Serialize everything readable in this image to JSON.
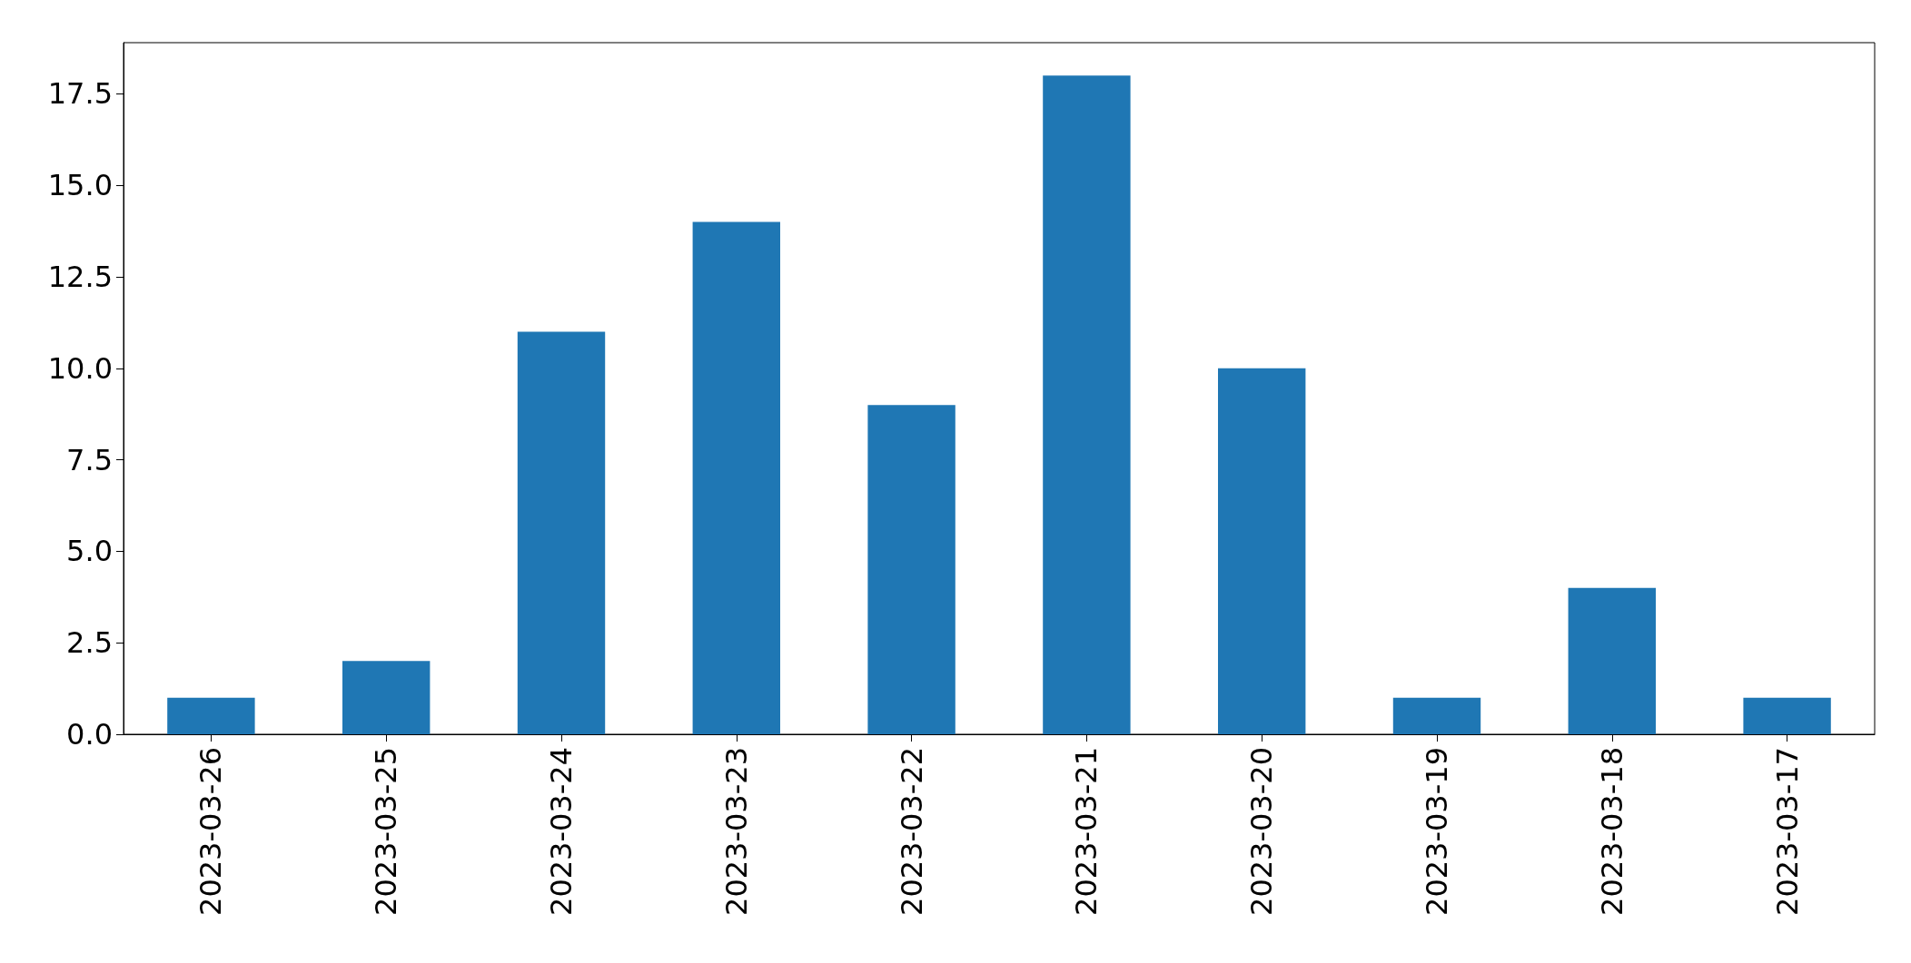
{
  "chart_data": {
    "type": "bar",
    "categories": [
      "2023-03-26",
      "2023-03-25",
      "2023-03-24",
      "2023-03-23",
      "2023-03-22",
      "2023-03-21",
      "2023-03-20",
      "2023-03-19",
      "2023-03-18",
      "2023-03-17"
    ],
    "values": [
      1,
      2,
      11,
      14,
      9,
      18,
      10,
      1,
      4,
      1
    ],
    "color": "#1f77b4",
    "ylim": [
      0,
      18.9
    ],
    "yticks": [
      {
        "value": 0,
        "label": "0.0"
      },
      {
        "value": 2.5,
        "label": "2.5"
      },
      {
        "value": 5,
        "label": "5.0"
      },
      {
        "value": 7.5,
        "label": "7.5"
      },
      {
        "value": 10,
        "label": "10.0"
      },
      {
        "value": 12.5,
        "label": "12.5"
      },
      {
        "value": 15,
        "label": "15.0"
      },
      {
        "value": 17.5,
        "label": "17.5"
      }
    ],
    "grid": false
  }
}
